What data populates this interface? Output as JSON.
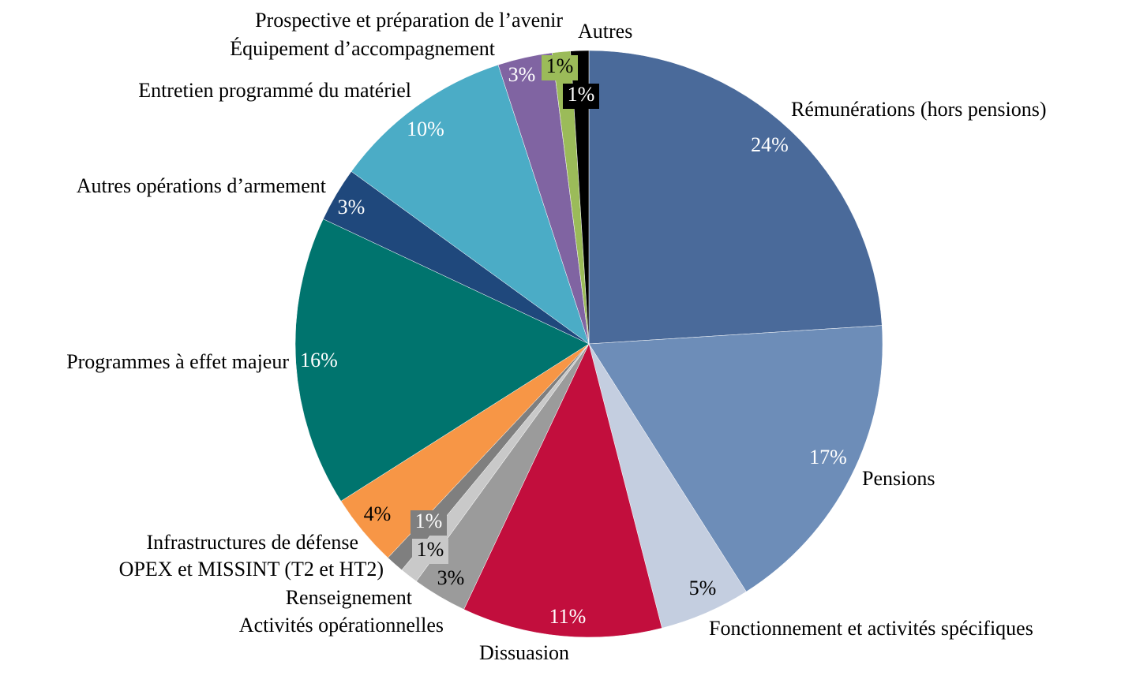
{
  "chart_data": {
    "type": "pie",
    "categories": [
      "Rémunérations (hors pensions)",
      "Pensions",
      "Fonctionnement et activités spécifiques",
      "Dissuasion",
      "Activités opérationnelles",
      "Renseignement",
      "OPEX et MISSINT (T2 et HT2)",
      "Infrastructures de défense",
      "Programmes à effet majeur",
      "Autres opérations d’armement",
      "Entretien programmé du matériel",
      "Équipement d’accompagnement",
      "Prospective et préparation de l’avenir",
      "Autres"
    ],
    "values": [
      24,
      17,
      5,
      11,
      3,
      1,
      1,
      4,
      16,
      3,
      10,
      3,
      1,
      1
    ],
    "value_labels": [
      "24%",
      "17%",
      "5%",
      "11%",
      "3%",
      "1%",
      "1%",
      "4%",
      "16%",
      "3%",
      "10%",
      "3%",
      "1%",
      "1%"
    ],
    "colors": [
      "#4a6a9a",
      "#6d8db8",
      "#c4cee0",
      "#c20e3d",
      "#9b9b9b",
      "#c9c9c9",
      "#7f7f7f",
      "#f79646",
      "#00746e",
      "#1f487c",
      "#4bacc6",
      "#8064a2",
      "#9bbb59",
      "#000000"
    ]
  }
}
